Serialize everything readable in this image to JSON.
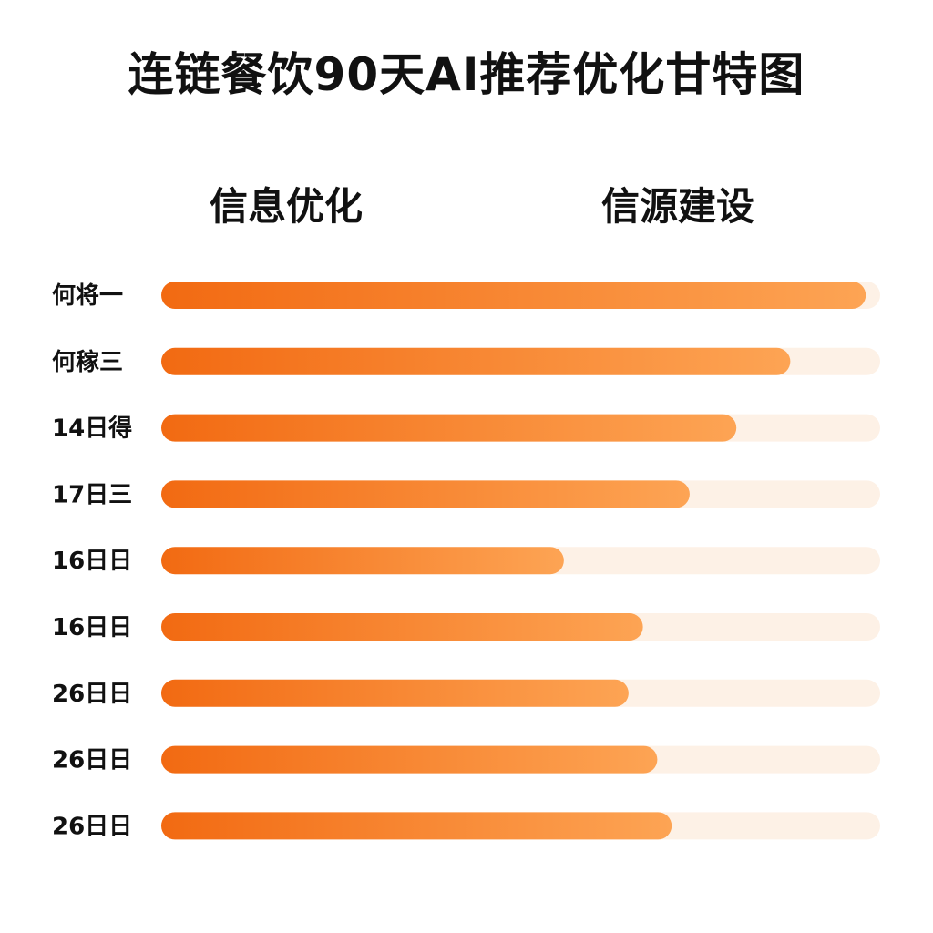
{
  "chart_data": {
    "type": "bar",
    "orientation": "horizontal",
    "title": "连链餐饮90天AI推荐优化甘特图",
    "phases": [
      "信息优化",
      "信源建设"
    ],
    "categories": [
      "何将一",
      "何稼三",
      "14日得",
      "17日三",
      "16日日",
      "16日日",
      "26日日",
      "26日日",
      "26日日"
    ],
    "values": [
      0.98,
      0.875,
      0.8,
      0.735,
      0.56,
      0.67,
      0.65,
      0.69,
      0.71
    ],
    "value_unit": "fraction of track",
    "xlim": [
      0,
      1
    ],
    "grid": false,
    "legend": "none"
  },
  "colors": {
    "bar_start": "#f26a12",
    "bar_end": "#fda454",
    "track": "#fdf1e6",
    "text": "#111111"
  }
}
